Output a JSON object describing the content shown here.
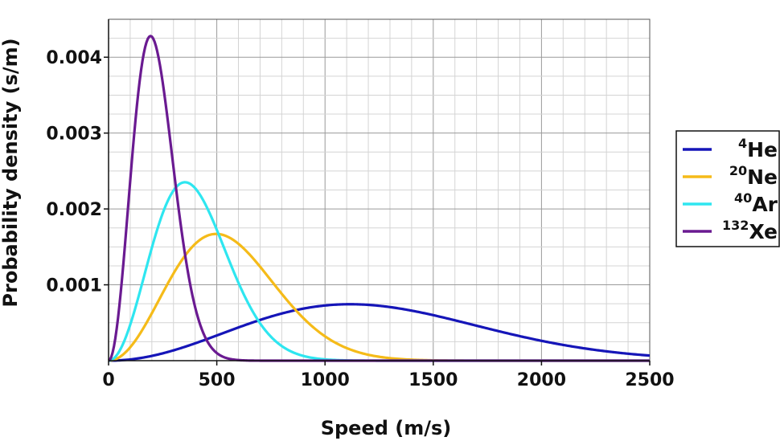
{
  "chart_data": {
    "type": "line",
    "xlabel": "Speed (m/s)",
    "ylabel": "Probability density (s/m)",
    "xlim": [
      0,
      2500
    ],
    "ylim": [
      0,
      0.0045
    ],
    "xticks": [
      0,
      500,
      1000,
      1500,
      2000,
      2500
    ],
    "xtick_labels": [
      "0",
      "500",
      "1000",
      "1500",
      "2000",
      "2500"
    ],
    "yticks": [
      0.001,
      0.002,
      0.003,
      0.004
    ],
    "ytick_labels": [
      "0.001",
      "0.002",
      "0.003",
      "0.004"
    ],
    "grid": true,
    "legend_position": "right",
    "series": [
      {
        "name": "4He",
        "label_sup": "4",
        "label_base": "He",
        "color": "#1515b8",
        "peak_speed": 1116,
        "peak_density": 0.00075
      },
      {
        "name": "20Ne",
        "label_sup": "20",
        "label_base": "Ne",
        "color": "#f5bb19",
        "peak_speed": 497,
        "peak_density": 0.00168
      },
      {
        "name": "40Ar",
        "label_sup": "40",
        "label_base": "Ar",
        "color": "#2ee6f0",
        "peak_speed": 353,
        "peak_density": 0.00236
      },
      {
        "name": "132Xe",
        "label_sup": "132",
        "label_base": "Xe",
        "color": "#6a1a91",
        "peak_speed": 194,
        "peak_density": 0.00428
      }
    ],
    "x_samples": [
      0,
      25,
      50,
      75,
      100,
      125,
      150,
      175,
      200,
      225,
      250,
      275,
      300,
      350,
      400,
      450,
      500,
      550,
      600,
      650,
      700,
      750,
      800,
      850,
      900,
      950,
      1000,
      1100,
      1200,
      1300,
      1400,
      1500,
      1600,
      1700,
      1800,
      1900,
      2000,
      2100,
      2200,
      2300,
      2400,
      2500
    ]
  }
}
